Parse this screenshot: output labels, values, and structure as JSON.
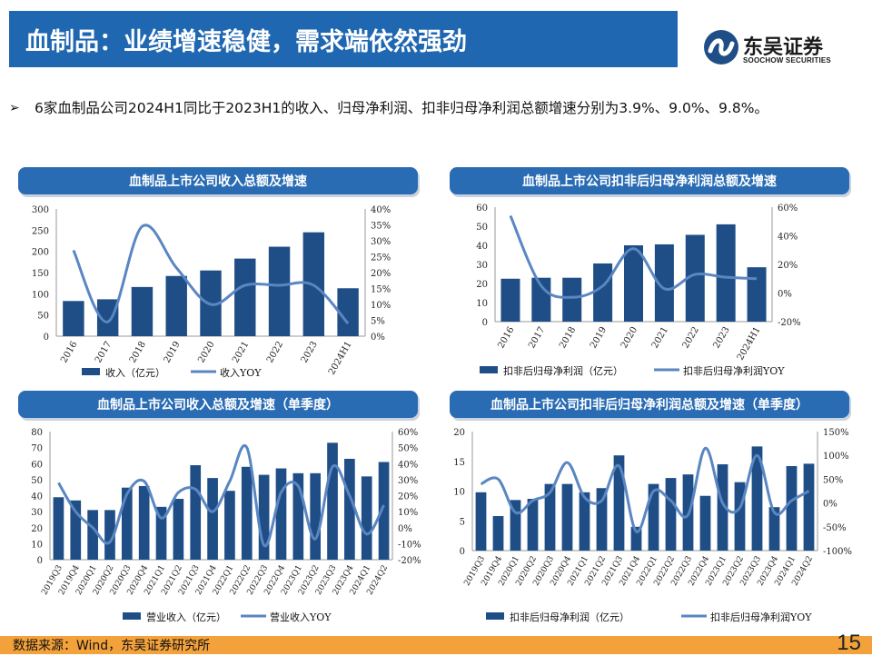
{
  "header": {
    "title": "血制品：业绩增速稳健，需求端依然强劲"
  },
  "logo": {
    "name": "东吴证券",
    "sub": "SOOCHOW SECURITIES"
  },
  "bullet": {
    "arrow": "➢",
    "text": "6家血制品公司2024H1同比于2023H1的收入、归母净利润、扣非归母净利润总额增速分别为3.9%、9.0%、9.8%。"
  },
  "footer": {
    "source": "数据来源：Wind，东吴证券研究所",
    "page": "15"
  },
  "colors": {
    "bar": "#1f4e86",
    "line": "#5a86c2",
    "header": "#1f67b1",
    "footer": "#f3a23b"
  },
  "chart_data": [
    {
      "id": "c1",
      "type": "bar+line",
      "title": "血制品上市公司收入总额及增速",
      "categories": [
        "2016",
        "2017",
        "2018",
        "2019",
        "2020",
        "2021",
        "2022",
        "2023",
        "2024H1"
      ],
      "series": [
        {
          "name": "收入（亿元）",
          "kind": "bar",
          "axis": "left",
          "values": [
            83,
            87,
            116,
            142,
            155,
            183,
            211,
            245,
            113
          ]
        },
        {
          "name": "收入YOY",
          "kind": "line",
          "axis": "right",
          "values": [
            0.27,
            0.045,
            0.345,
            0.215,
            0.1,
            0.16,
            0.16,
            0.16,
            0.04
          ]
        }
      ],
      "yleft": {
        "min": 0,
        "max": 300,
        "ticks": [
          "0",
          "50",
          "100",
          "150",
          "200",
          "250",
          "300"
        ]
      },
      "yright": {
        "min": 0,
        "max": 0.4,
        "ticks": [
          "0%",
          "5%",
          "10%",
          "15%",
          "20%",
          "25%",
          "30%",
          "35%",
          "40%"
        ]
      }
    },
    {
      "id": "c2",
      "type": "bar+line",
      "title": "血制品上市公司扣非后归母净利润总额及增速",
      "categories": [
        "2016",
        "2017",
        "2018",
        "2019",
        "2020",
        "2021",
        "2022",
        "2023",
        "2024H1"
      ],
      "series": [
        {
          "name": "扣非后归母净利润（亿元）",
          "kind": "bar",
          "axis": "left",
          "values": [
            22.5,
            23,
            23,
            30.5,
            40,
            40.5,
            45.5,
            51,
            28.5
          ]
        },
        {
          "name": "扣非后归母净利润YOY",
          "kind": "line",
          "axis": "right",
          "values": [
            0.54,
            0.05,
            -0.03,
            0.05,
            0.31,
            0.03,
            0.13,
            0.11,
            0.1
          ]
        }
      ],
      "yleft": {
        "min": 0,
        "max": 60,
        "ticks": [
          "0",
          "10",
          "20",
          "30",
          "40",
          "50",
          "60"
        ]
      },
      "yright": {
        "min": -0.2,
        "max": 0.6,
        "ticks": [
          "-20%",
          "0%",
          "20%",
          "40%",
          "60%"
        ]
      }
    },
    {
      "id": "c3",
      "type": "bar+line",
      "title": "血制品上市公司收入总额及增速（单季度）",
      "categories": [
        "2019Q3",
        "2019Q4",
        "2020Q1",
        "2020Q2",
        "2020Q3",
        "2020Q4",
        "2021Q1",
        "2021Q2",
        "2021Q3",
        "2021Q4",
        "2022Q1",
        "2022Q2",
        "2022Q3",
        "2022Q4",
        "2023Q1",
        "2023Q2",
        "2023Q3",
        "2023Q4",
        "2024Q1",
        "2024Q2"
      ],
      "series": [
        {
          "name": "营业收入（亿元）",
          "kind": "bar",
          "axis": "left",
          "values": [
            39,
            37,
            31,
            31,
            45,
            46,
            33,
            38,
            59,
            51,
            43,
            58,
            53,
            57,
            54,
            54,
            73,
            63,
            52,
            61
          ]
        },
        {
          "name": "营业收入YOY",
          "kind": "line",
          "axis": "right",
          "values": [
            0.28,
            0.1,
            0.0,
            -0.09,
            0.21,
            0.29,
            0.06,
            0.22,
            0.24,
            0.1,
            0.29,
            0.5,
            -0.11,
            0.22,
            0.26,
            -0.07,
            0.38,
            0.2,
            -0.04,
            0.14
          ]
        }
      ],
      "yleft": {
        "min": 0,
        "max": 80,
        "ticks": [
          "0",
          "10",
          "20",
          "30",
          "40",
          "50",
          "60",
          "70",
          "80"
        ]
      },
      "yright": {
        "min": -0.2,
        "max": 0.6,
        "ticks": [
          "-20%",
          "-10%",
          "0%",
          "10%",
          "20%",
          "30%",
          "40%",
          "50%",
          "60%"
        ]
      }
    },
    {
      "id": "c4",
      "type": "bar+line",
      "title": "血制品上市公司扣非后归母净利润总额及增速（单季度）",
      "categories": [
        "2019Q3",
        "2019Q4",
        "2020Q1",
        "2020Q2",
        "2020Q3",
        "2020Q4",
        "2021Q1",
        "2021Q2",
        "2021Q3",
        "2021Q4",
        "2022Q1",
        "2022Q2",
        "2022Q3",
        "2022Q4",
        "2023Q1",
        "2023Q2",
        "2023Q3",
        "2023Q4",
        "2024Q1",
        "2024Q2"
      ],
      "series": [
        {
          "name": "扣非后归母净利润（亿元）",
          "kind": "bar",
          "axis": "left",
          "values": [
            9.8,
            5.8,
            8.5,
            8.7,
            11.2,
            11.2,
            9.8,
            10.5,
            16,
            4,
            11.2,
            12.2,
            12.8,
            9.2,
            14.5,
            11.5,
            17.5,
            7.3,
            14.2,
            14.6
          ]
        },
        {
          "name": "扣非后归母净利润YOY",
          "kind": "line",
          "axis": "right",
          "values": [
            0.4,
            0.5,
            -0.2,
            0.05,
            0.22,
            0.85,
            0.12,
            0.05,
            0.78,
            -0.6,
            0.25,
            0.05,
            -0.25,
            1.15,
            0.0,
            -0.1,
            1.0,
            -0.2,
            0.05,
            0.25
          ]
        }
      ],
      "yleft": {
        "min": 0,
        "max": 20,
        "ticks": [
          "0",
          "5",
          "10",
          "15",
          "20"
        ]
      },
      "yright": {
        "min": -1.0,
        "max": 1.5,
        "ticks": [
          "-100%",
          "-50%",
          "0%",
          "50%",
          "100%",
          "150%"
        ]
      }
    }
  ]
}
